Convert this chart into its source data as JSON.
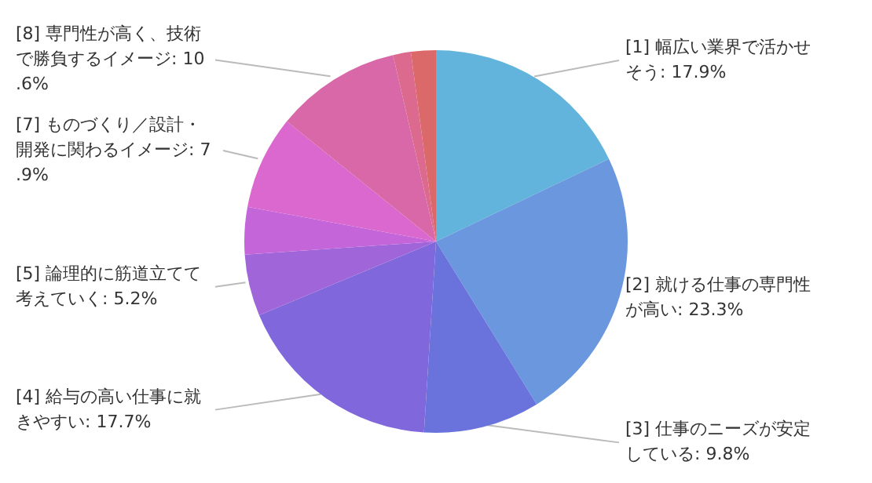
{
  "chart_data": {
    "type": "pie",
    "categories": [
      "[1] 幅広い業界で活かせそう: 17.9%",
      "[2] 就ける仕事の専門性が高い: 23.3%",
      "[3] 仕事のニーズが安定している: 9.8%",
      "[4] 給与の高い仕事に就きやすい: 17.7%",
      "[5] 論理的に筋道立てて考えていく: 5.2%",
      null,
      "[7] ものづくり／設計・開発に関わるイメージ: 7.9%",
      "[8] 専門性が高く、技術で勝負するイメージ: 10.6%",
      null,
      null
    ],
    "values": [
      17.9,
      23.3,
      9.8,
      17.7,
      5.2,
      4.0,
      7.9,
      10.6,
      1.5,
      2.1
    ],
    "colors": [
      "#63b4dc",
      "#6a97de",
      "#6a72dc",
      "#8068dc",
      "#a065d8",
      "#c466da",
      "#db68cf",
      "#d968a8",
      "#db6a8e",
      "#dc6969"
    ]
  }
}
